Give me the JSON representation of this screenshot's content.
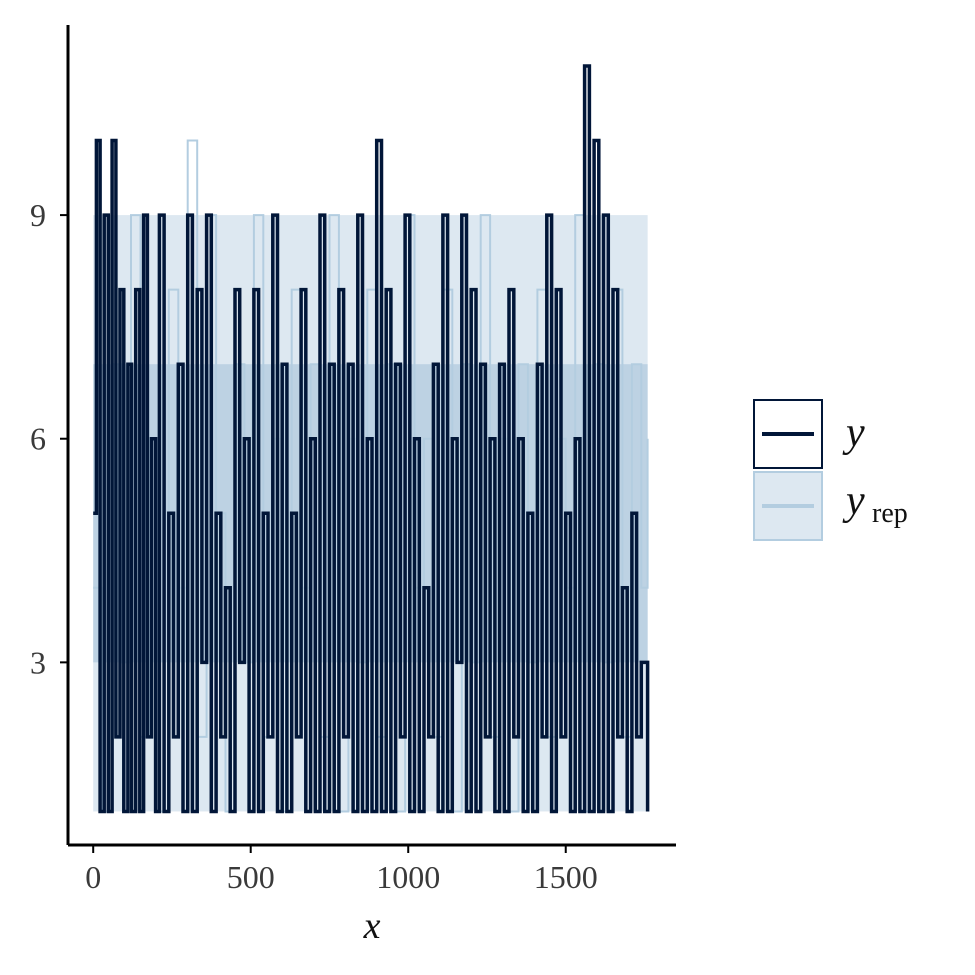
{
  "chart_data": {
    "type": "line",
    "title": "",
    "xlabel": "x",
    "ylabel": "",
    "xlim": [
      -80,
      1850
    ],
    "ylim": [
      0.55,
      11.55
    ],
    "x_ticks": [
      0,
      500,
      1000,
      1500
    ],
    "x_tick_labels": [
      "0",
      "500",
      "1000",
      "1500"
    ],
    "y_ticks": [
      3,
      6,
      9
    ],
    "y_tick_labels": [
      "3",
      "6",
      "9"
    ],
    "grid": false,
    "legend": "right",
    "series": [
      {
        "name": "y",
        "kind": "observed step line",
        "color": "#011638",
        "x": [
          0,
          10,
          22,
          35,
          48,
          60,
          72,
          85,
          97,
          110,
          122,
          135,
          148,
          160,
          172,
          185,
          198,
          210,
          225,
          240,
          255,
          270,
          285,
          300,
          315,
          330,
          345,
          360,
          375,
          390,
          405,
          420,
          435,
          450,
          465,
          480,
          495,
          510,
          525,
          540,
          555,
          570,
          585,
          600,
          615,
          630,
          645,
          660,
          675,
          690,
          705,
          720,
          735,
          750,
          765,
          780,
          795,
          810,
          825,
          840,
          855,
          870,
          885,
          900,
          915,
          930,
          945,
          960,
          975,
          990,
          1005,
          1020,
          1035,
          1050,
          1065,
          1080,
          1095,
          1110,
          1125,
          1140,
          1155,
          1170,
          1185,
          1200,
          1215,
          1230,
          1245,
          1260,
          1275,
          1290,
          1305,
          1320,
          1335,
          1350,
          1365,
          1380,
          1395,
          1410,
          1425,
          1440,
          1455,
          1470,
          1485,
          1500,
          1515,
          1530,
          1545,
          1560,
          1575,
          1590,
          1605,
          1620,
          1635,
          1650,
          1665,
          1680,
          1695,
          1710,
          1725,
          1740,
          1760
        ],
        "values": [
          5,
          10,
          1,
          9,
          1,
          10,
          2,
          8,
          1,
          7,
          1,
          8,
          1,
          9,
          2,
          6,
          1,
          9,
          1,
          5,
          2,
          7,
          1,
          9,
          1,
          8,
          3,
          9,
          1,
          5,
          2,
          4,
          1,
          8,
          3,
          6,
          1,
          8,
          1,
          5,
          2,
          9,
          1,
          7,
          1,
          5,
          2,
          8,
          1,
          6,
          1,
          9,
          1,
          7,
          1,
          8,
          2,
          7,
          1,
          9,
          1,
          6,
          1,
          10,
          1,
          8,
          1,
          7,
          2,
          9,
          1,
          6,
          1,
          4,
          2,
          7,
          1,
          9,
          1,
          6,
          3,
          9,
          1,
          8,
          1,
          7,
          2,
          6,
          1,
          7,
          1,
          8,
          2,
          6,
          1,
          5,
          1,
          7,
          2,
          9,
          1,
          8,
          2,
          5,
          1,
          6,
          1,
          11,
          1,
          10,
          1,
          9,
          1,
          8,
          2,
          4,
          1,
          5,
          2,
          3,
          1
        ]
      },
      {
        "name": "y_rep",
        "kind": "replicated draws (light step lines)",
        "color": "#b3cde0",
        "x": [
          0,
          30,
          60,
          90,
          120,
          150,
          180,
          210,
          240,
          270,
          300,
          330,
          360,
          390,
          420,
          450,
          480,
          510,
          540,
          570,
          600,
          630,
          660,
          690,
          720,
          750,
          780,
          810,
          840,
          870,
          900,
          930,
          960,
          990,
          1020,
          1050,
          1080,
          1110,
          1140,
          1170,
          1200,
          1230,
          1260,
          1290,
          1320,
          1350,
          1380,
          1410,
          1440,
          1470,
          1500,
          1530,
          1560,
          1590,
          1620,
          1650,
          1680,
          1710,
          1740,
          1760
        ],
        "values": [
          4,
          1,
          7,
          3,
          9,
          2,
          6,
          1,
          8,
          4,
          10,
          2,
          9,
          5,
          1,
          7,
          3,
          9,
          2,
          6,
          1,
          8,
          4,
          7,
          2,
          9,
          1,
          6,
          3,
          8,
          2,
          7,
          1,
          9,
          4,
          6,
          2,
          8,
          1,
          7,
          3,
          9,
          2,
          6,
          1,
          7,
          3,
          8,
          2,
          6,
          4,
          9,
          1,
          7,
          3,
          8,
          2,
          7,
          4,
          6
        ]
      }
    ],
    "legend_entries": [
      {
        "label": "y",
        "subscript": ""
      },
      {
        "label": "y",
        "subscript": "rep"
      }
    ],
    "colors": {
      "y": "#011638",
      "y_rep_line": "#b3cde0",
      "y_rep_fill": "#dde8f1",
      "y_rep_band": "#a3bfd7"
    }
  }
}
